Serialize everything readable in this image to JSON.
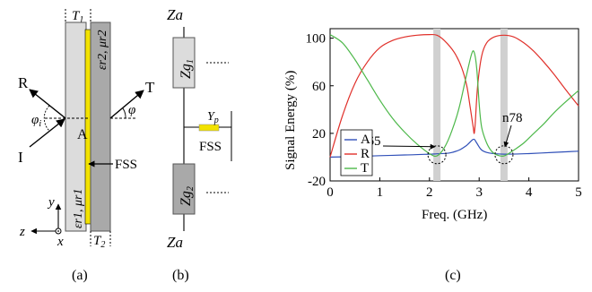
{
  "panel_a": {
    "caption": "(a)",
    "T1": "T1",
    "T2": "T2",
    "eps_r2_mu2": "εr2, μr2",
    "eps_r1_mu1": "εr1, μr1",
    "R": "R",
    "I": "I",
    "A": "A",
    "T": "T",
    "phi_i": "φi",
    "phi": "φ",
    "FSS": "FSS",
    "axis_y": "y",
    "axis_z": "z",
    "axis_x": "x",
    "colors": {
      "slab1": "#dcdcdc",
      "slab2": "#a9a9a9",
      "fss": "#f2e200"
    }
  },
  "panel_b": {
    "caption": "(b)",
    "Za_top": "Za",
    "Zg1": "Zg1",
    "Yp": "Yp",
    "FSS": "FSS",
    "Zg2": "Zg2",
    "Za_bottom": "Za",
    "colors": {
      "zg1": "#dcdcdc",
      "zg2": "#a9a9a9",
      "fss": "#f2e200"
    }
  },
  "panel_c": {
    "caption": "(c)",
    "annotations": [
      "n65",
      "n78"
    ],
    "chart_data": {
      "type": "line",
      "xlabel": "Freq. (GHz)",
      "ylabel": "Signal Energy (%)",
      "xlim": [
        0,
        5
      ],
      "ylim": [
        -20,
        108
      ],
      "xticks": [
        "0",
        "1",
        "2",
        "3",
        "4",
        "5"
      ],
      "yticks": [
        "-20",
        "20",
        "60",
        "100"
      ],
      "legend_position": "lower-left",
      "highlight_bands_ghz": [
        2.15,
        3.5
      ],
      "series": [
        {
          "name": "A",
          "color": "#3050b8",
          "x": [
            0,
            0.5,
            1.0,
            1.5,
            2.0,
            2.15,
            2.4,
            2.6,
            2.75,
            2.85,
            2.9,
            2.95,
            3.05,
            3.2,
            3.5,
            4.0,
            4.5,
            5.0
          ],
          "y": [
            0,
            0.5,
            1.2,
            1.8,
            2.5,
            2.8,
            3.5,
            6,
            10,
            14,
            15,
            12,
            6,
            3.5,
            2.5,
            3,
            4,
            5
          ]
        },
        {
          "name": "R",
          "color": "#e0302a",
          "x": [
            0,
            0.25,
            0.5,
            0.75,
            1.0,
            1.25,
            1.5,
            1.75,
            2.0,
            2.15,
            2.3,
            2.5,
            2.65,
            2.75,
            2.82,
            2.88,
            2.9,
            2.92,
            2.97,
            3.05,
            3.15,
            3.3,
            3.5,
            3.7,
            3.9,
            4.1,
            4.3,
            4.5,
            4.7,
            5.0
          ],
          "y": [
            0,
            35,
            62,
            80,
            92,
            98,
            101,
            102.5,
            103,
            102.5,
            98,
            88,
            75,
            60,
            42,
            25,
            20,
            28,
            60,
            85,
            96,
            101,
            102.5,
            101,
            96,
            89,
            80,
            70,
            59,
            43
          ]
        },
        {
          "name": "T",
          "color": "#4db84a",
          "x": [
            0,
            0.25,
            0.5,
            0.75,
            1.0,
            1.25,
            1.5,
            1.75,
            2.0,
            2.15,
            2.3,
            2.45,
            2.6,
            2.75,
            2.85,
            2.9,
            2.95,
            3.0,
            3.05,
            3.15,
            3.25,
            3.35,
            3.5,
            3.7,
            3.9,
            4.1,
            4.3,
            4.5,
            4.7,
            5.0
          ],
          "y": [
            103,
            96,
            82,
            65,
            48,
            33,
            21,
            11,
            3,
            1,
            8,
            22,
            42,
            70,
            87,
            88,
            75,
            45,
            25,
            12,
            5,
            2,
            1,
            6,
            12,
            20,
            28,
            37,
            45,
            56
          ]
        }
      ]
    }
  }
}
